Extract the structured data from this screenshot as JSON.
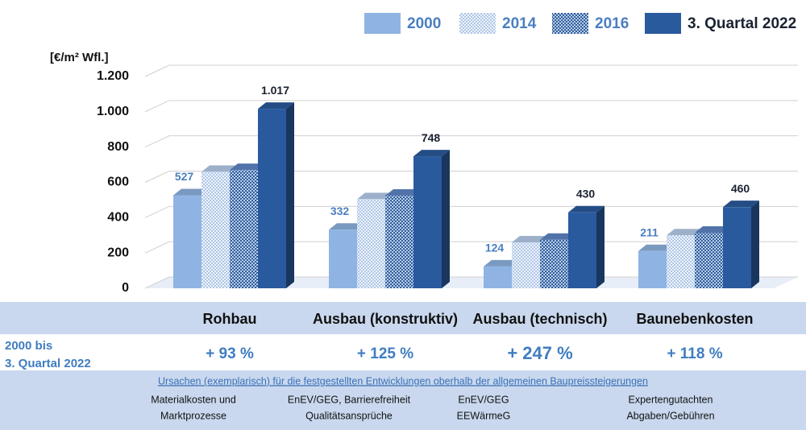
{
  "chart_data": {
    "type": "bar",
    "y_label": "[€/m² Wfl.]",
    "categories": [
      "Rohbau",
      "Ausbau (konstruktiv)",
      "Ausbau (technisch)",
      "Baunebenkosten"
    ],
    "series": [
      {
        "name": "2000",
        "color": "#8fb4e3",
        "pattern": "solid",
        "labels": true,
        "values": [
          527,
          332,
          124,
          211
        ]
      },
      {
        "name": "2014",
        "color": "#b9cfee",
        "pattern": "dots",
        "labels": false,
        "values": [
          660,
          505,
          260,
          300
        ]
      },
      {
        "name": "2016",
        "color": "#5f87c8",
        "pattern": "crosshatch",
        "labels": false,
        "values": [
          670,
          525,
          275,
          315
        ]
      },
      {
        "name": "3. Quartal 2022",
        "color": "#2a5a9e",
        "pattern": "solid",
        "labels": true,
        "values": [
          1017,
          748,
          430,
          460
        ],
        "value_labels": [
          "1.017",
          "748",
          "430",
          "460"
        ]
      }
    ],
    "ylim": [
      0,
      1200
    ],
    "yticks": [
      0,
      200,
      400,
      600,
      800,
      {
        "value": 1000,
        "label": "1.000"
      },
      {
        "value": 1200,
        "label": "1.200"
      }
    ],
    "grid": true,
    "legend": "top-right"
  },
  "table": {
    "row_label": [
      "2000 bis",
      "3. Quartal 2022"
    ],
    "changes": [
      "+ 93 %",
      "+ 125 %",
      "+ 247 %",
      "+ 118 %"
    ],
    "causes_title": "Ursachen (exemplarisch) für die festgestellten Entwicklungen oberhalb der allgemeinen Baupreissteigerungen",
    "causes": [
      [
        "Materialkosten und",
        "Marktprozesse"
      ],
      [
        "EnEV/GEG, Barrierefreiheit",
        "Qualitätsansprüche"
      ],
      [
        "EnEV/GEG",
        "EEWärmeG"
      ],
      [
        "Expertengutachten",
        "Abgaben/Gebühren"
      ]
    ]
  }
}
